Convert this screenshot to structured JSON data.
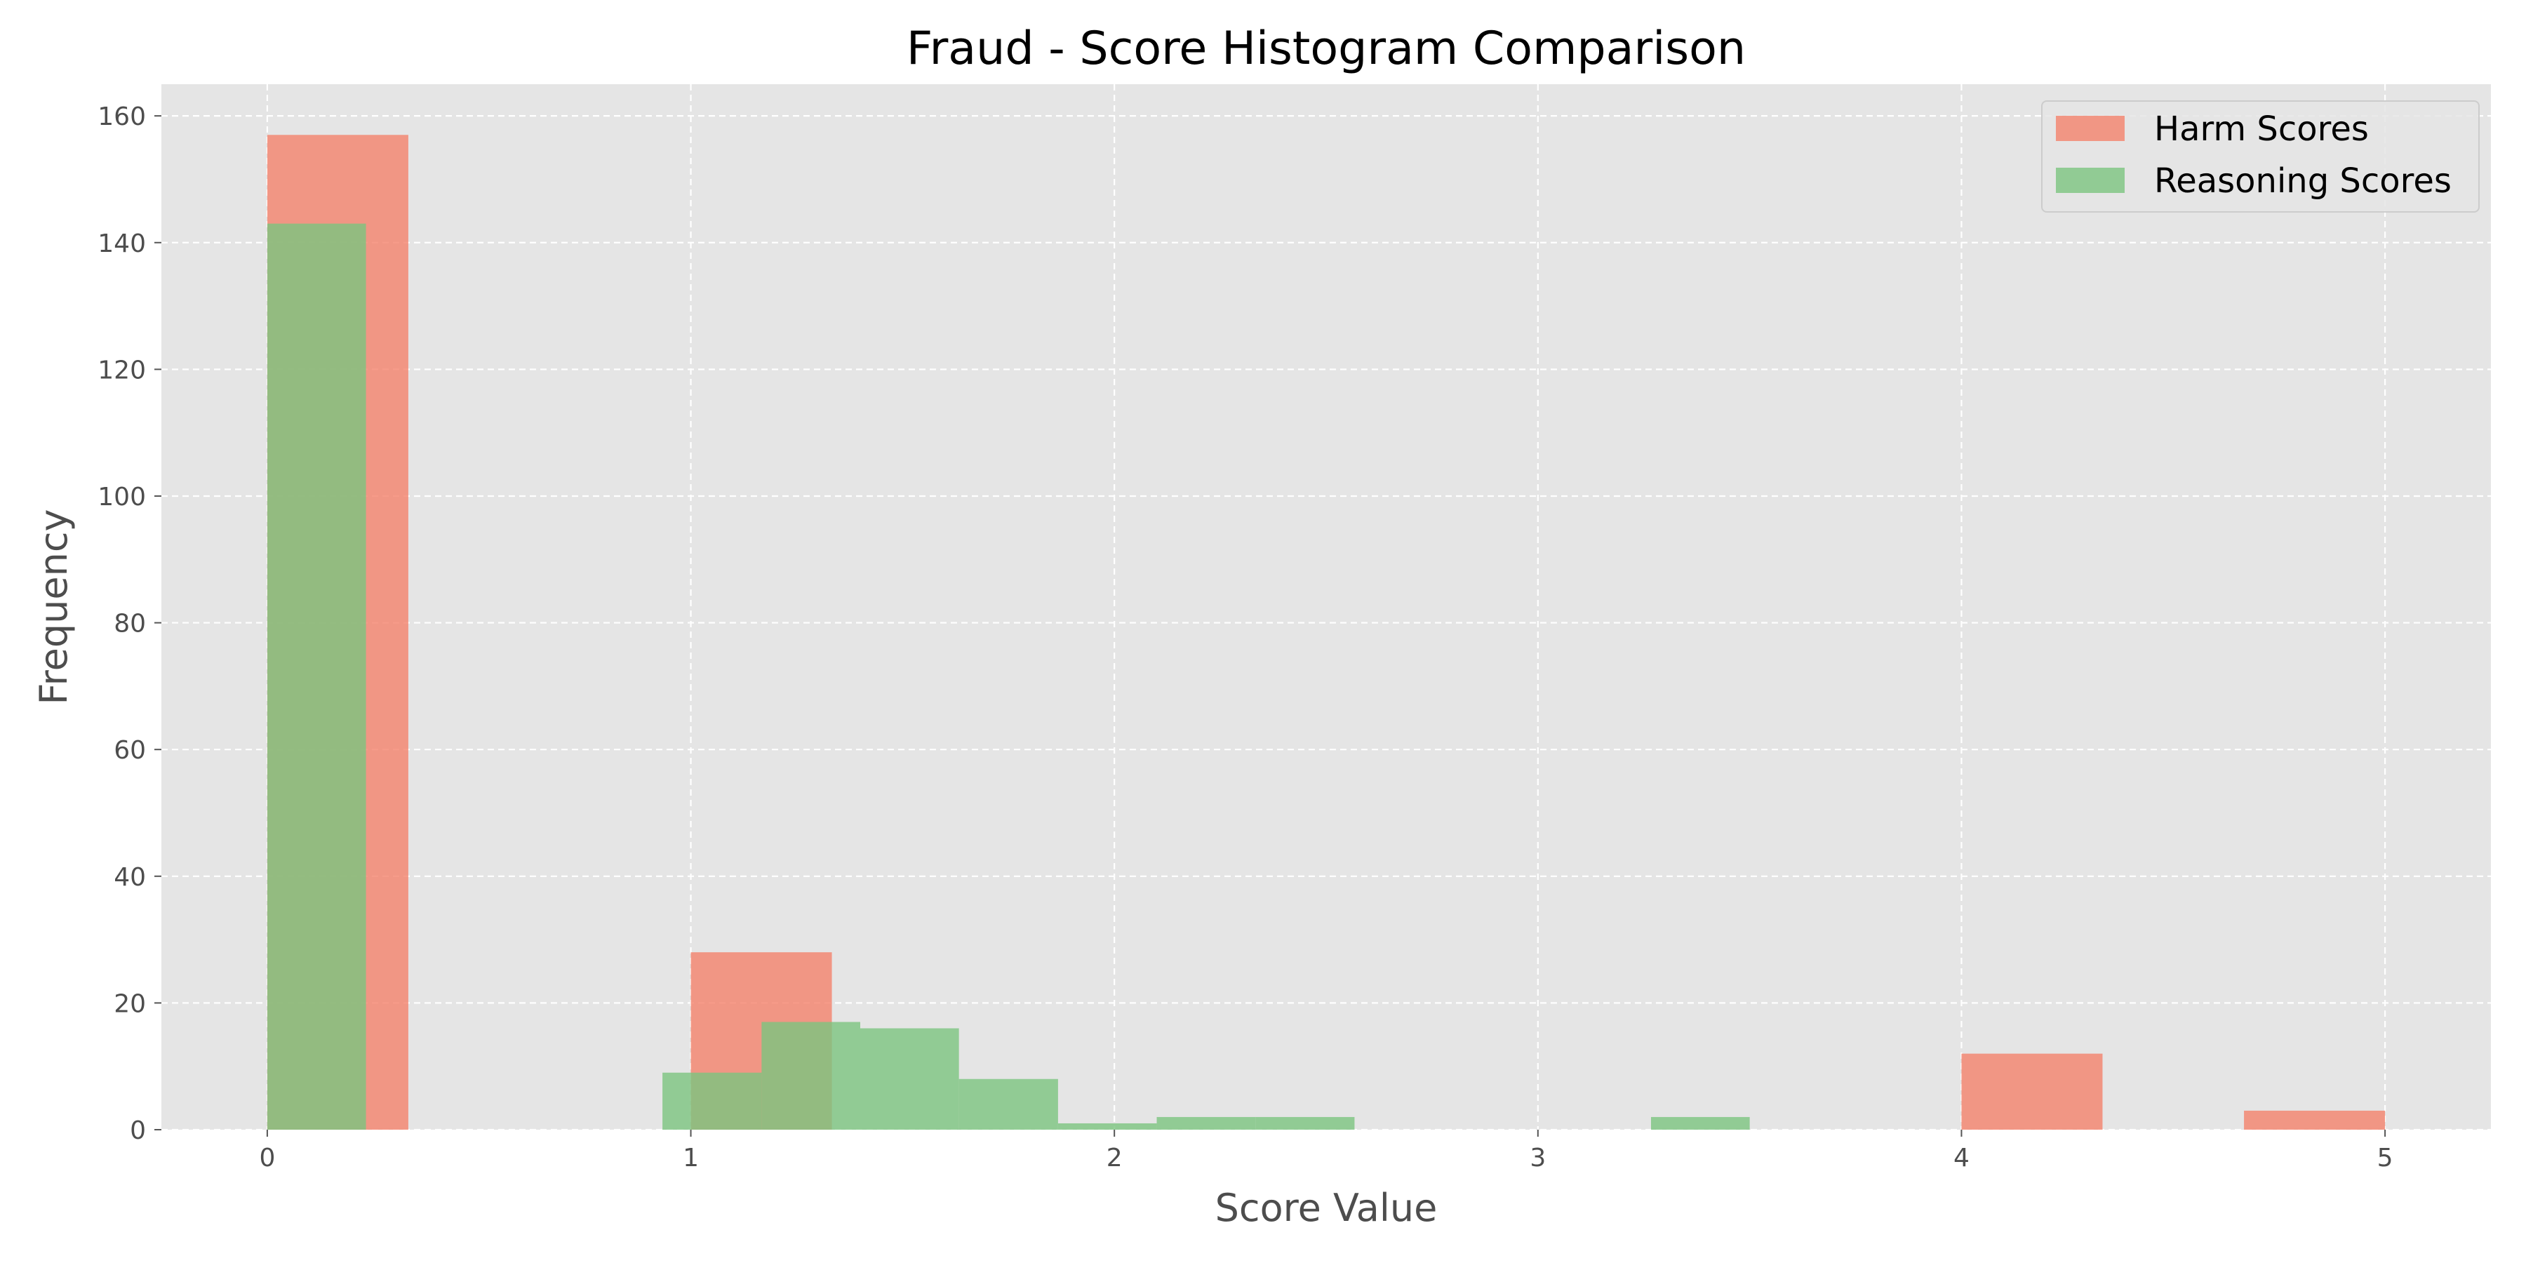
{
  "chart_data": {
    "type": "bar",
    "title": "Fraud - Score Histogram Comparison",
    "xlabel": "Score Value",
    "ylabel": "Frequency",
    "xlim": [
      -0.25,
      5.25
    ],
    "ylim": [
      0,
      165
    ],
    "xticks": [
      0,
      1,
      2,
      3,
      4,
      5
    ],
    "yticks": [
      0,
      20,
      40,
      60,
      80,
      100,
      120,
      140,
      160
    ],
    "grid": true,
    "legend_position": "top-right",
    "series": [
      {
        "name": "Harm Scores",
        "color": "#f4826b",
        "bins": [
          {
            "x0": 0.0,
            "x1": 0.333,
            "value": 157
          },
          {
            "x0": 1.0,
            "x1": 1.333,
            "value": 28
          },
          {
            "x0": 4.0,
            "x1": 4.333,
            "value": 12
          },
          {
            "x0": 4.667,
            "x1": 5.0,
            "value": 3
          }
        ]
      },
      {
        "name": "Reasoning Scores",
        "color": "#7cc47f",
        "bins": [
          {
            "x0": 0.0,
            "x1": 0.233,
            "value": 143
          },
          {
            "x0": 0.933,
            "x1": 1.167,
            "value": 9
          },
          {
            "x0": 1.167,
            "x1": 1.4,
            "value": 17
          },
          {
            "x0": 1.4,
            "x1": 1.633,
            "value": 16
          },
          {
            "x0": 1.633,
            "x1": 1.867,
            "value": 8
          },
          {
            "x0": 1.867,
            "x1": 2.1,
            "value": 1
          },
          {
            "x0": 2.1,
            "x1": 2.333,
            "value": 2
          },
          {
            "x0": 2.333,
            "x1": 2.567,
            "value": 2
          },
          {
            "x0": 3.267,
            "x1": 3.5,
            "value": 2
          }
        ]
      }
    ]
  },
  "colors": {
    "plot_background": "#e5e5e5",
    "grid": "#ffffff"
  }
}
